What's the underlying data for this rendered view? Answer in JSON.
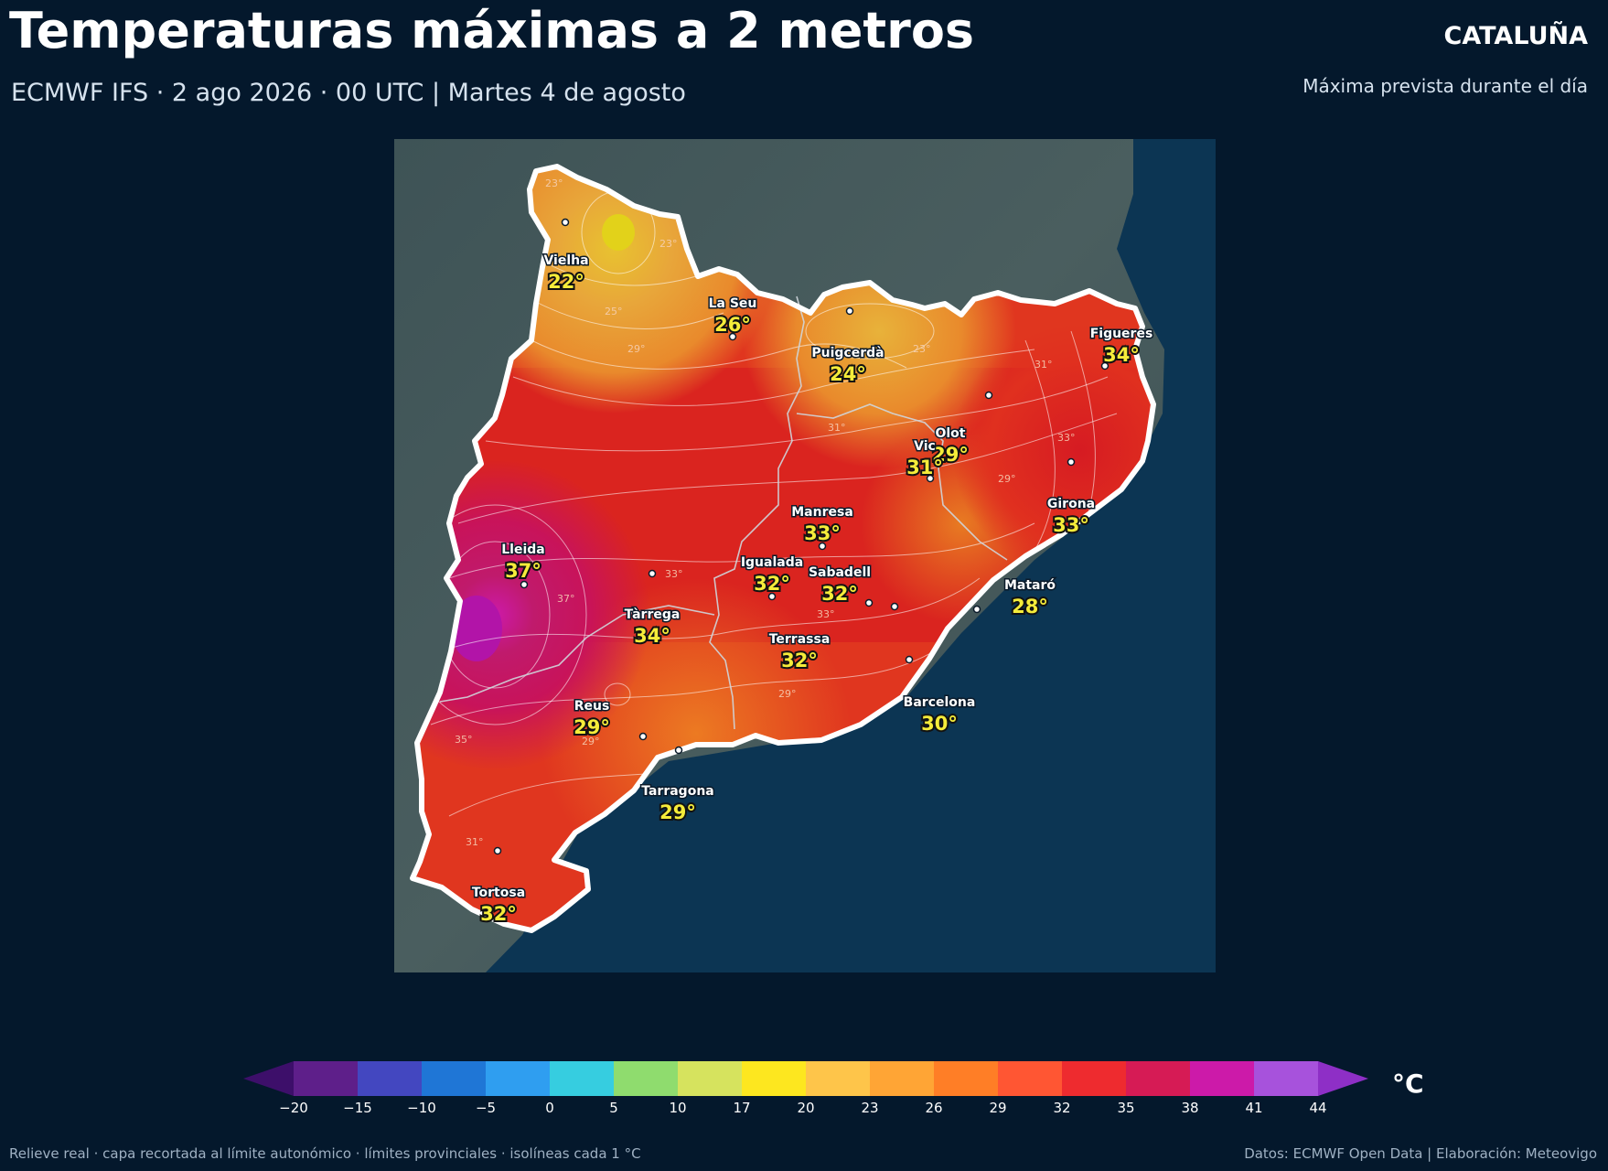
{
  "header": {
    "title": "Temperaturas máximas a 2 metros",
    "region": "CATALUÑA",
    "subtitle": "ECMWF IFS · 2 ago 2026 · 00 UTC  |  Martes 4 de agosto",
    "note": "Máxima prevista durante el día"
  },
  "map": {
    "cities": [
      {
        "name": "Vielha",
        "temp": "22°"
      },
      {
        "name": "La Seu",
        "temp": "26°"
      },
      {
        "name": "Puigcerdà",
        "temp": "24°"
      },
      {
        "name": "Figueres",
        "temp": "34°"
      },
      {
        "name": "Olot",
        "temp": "29°"
      },
      {
        "name": "Vic",
        "temp": "31°"
      },
      {
        "name": "Girona",
        "temp": "33°"
      },
      {
        "name": "Manresa",
        "temp": "33°"
      },
      {
        "name": "Lleida",
        "temp": "37°"
      },
      {
        "name": "Igualada",
        "temp": "32°"
      },
      {
        "name": "Sabadell",
        "temp": "32°"
      },
      {
        "name": "Mataró",
        "temp": "28°"
      },
      {
        "name": "Tàrrega",
        "temp": "34°"
      },
      {
        "name": "Terrassa",
        "temp": "32°"
      },
      {
        "name": "Reus",
        "temp": "29°"
      },
      {
        "name": "Barcelona",
        "temp": "30°"
      },
      {
        "name": "Tarragona",
        "temp": "29°"
      },
      {
        "name": "Tortosa",
        "temp": "32°"
      }
    ],
    "isolines": [
      "23°",
      "25°",
      "29°",
      "23°",
      "23°",
      "31°",
      "33°",
      "29°",
      "31°",
      "33°",
      "33°",
      "37°",
      "29°",
      "35°",
      "31°",
      "29°"
    ]
  },
  "colorbar": {
    "unit": "°C",
    "ticks": [
      "−20",
      "−15",
      "−10",
      "−5",
      "0",
      "5",
      "10",
      "17",
      "20",
      "23",
      "26",
      "29",
      "32",
      "35",
      "38",
      "41",
      "44"
    ],
    "colors": [
      "#5e1f8a",
      "#4347c0",
      "#1f76d6",
      "#2f9ef0",
      "#36cde0",
      "#8fdc6e",
      "#d6e35e",
      "#fde71f",
      "#fec54a",
      "#ffa535",
      "#ff7e26",
      "#ff5633",
      "#ee2b2f",
      "#d61b55",
      "#cc1aa9",
      "#a752dc"
    ],
    "under_color": "#3d0f6a",
    "over_color": "#8e2fc6"
  },
  "footer": {
    "left": "Relieve real · capa recortada al límite autonómico · límites provinciales · isolíneas cada 1 °C",
    "right": "Datos: ECMWF Open Data | Elaboración: Meteovigo"
  }
}
